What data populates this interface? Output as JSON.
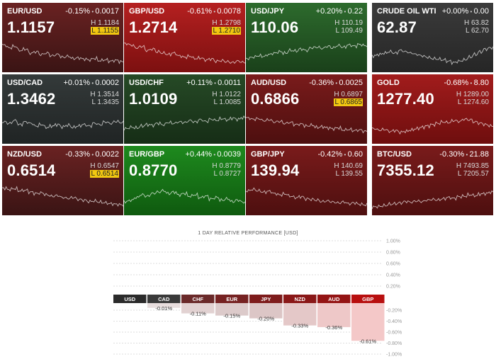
{
  "tiles": [
    {
      "symbol": "EUR/USD",
      "change": "-0.15%",
      "change_abs": "0.0017",
      "price": "1.1157",
      "high": "H 1.1184",
      "low": "L 1.1155",
      "low_hit": true,
      "high_hit": false,
      "theme": "dark-red",
      "trend": [
        0.8,
        0.7,
        0.75,
        0.6,
        0.65,
        0.5,
        0.55,
        0.45,
        0.5,
        0.4,
        0.45,
        0.35,
        0.38,
        0.3,
        0.32,
        0.28,
        0.25,
        0.3,
        0.22,
        0.25,
        0.2,
        0.23,
        0.18
      ]
    },
    {
      "symbol": "GBP/USD",
      "change": "-0.61%",
      "change_abs": "0.0078",
      "price": "1.2714",
      "high": "H 1.2798",
      "low": "L 1.2710",
      "low_hit": true,
      "high_hit": false,
      "theme": "red",
      "trend": [
        0.85,
        0.8,
        0.7,
        0.75,
        0.6,
        0.65,
        0.55,
        0.5,
        0.45,
        0.5,
        0.4,
        0.35,
        0.38,
        0.3,
        0.32,
        0.25,
        0.28,
        0.2,
        0.22,
        0.18,
        0.15,
        0.2,
        0.16
      ]
    },
    {
      "symbol": "USD/JPY",
      "change": "+0.20%",
      "change_abs": "0.22",
      "price": "110.06",
      "high": "H 110.19",
      "low": "L 109.49",
      "low_hit": false,
      "high_hit": false,
      "theme": "green",
      "trend": [
        0.3,
        0.35,
        0.4,
        0.38,
        0.45,
        0.5,
        0.55,
        0.5,
        0.6,
        0.58,
        0.65,
        0.6,
        0.7,
        0.72,
        0.68,
        0.75,
        0.7,
        0.78,
        0.72,
        0.8,
        0.76,
        0.82,
        0.78
      ]
    },
    {
      "symbol": "CRUDE OIL WTI",
      "change": "+0.00%",
      "change_abs": "0.00",
      "price": "62.87",
      "high": "H 63.82",
      "low": "L 62.70",
      "low_hit": false,
      "high_hit": false,
      "theme": "dark",
      "trend": [
        0.4,
        0.45,
        0.5,
        0.55,
        0.5,
        0.6,
        0.55,
        0.5,
        0.45,
        0.4,
        0.35,
        0.3,
        0.28,
        0.25,
        0.2,
        0.15,
        0.2,
        0.25,
        0.35,
        0.45,
        0.55,
        0.65,
        0.7
      ]
    },
    {
      "symbol": "USD/CAD",
      "change": "+0.01%",
      "change_abs": "0.0002",
      "price": "1.3462",
      "high": "H 1.3514",
      "low": "L 1.3435",
      "low_hit": false,
      "high_hit": false,
      "theme": "slate",
      "trend": [
        0.6,
        0.55,
        0.65,
        0.5,
        0.6,
        0.55,
        0.45,
        0.5,
        0.4,
        0.45,
        0.5,
        0.42,
        0.48,
        0.4,
        0.45,
        0.5,
        0.45,
        0.55,
        0.5,
        0.6,
        0.55,
        0.62,
        0.58
      ]
    },
    {
      "symbol": "USD/CHF",
      "change": "+0.11%",
      "change_abs": "0.0011",
      "price": "1.0109",
      "high": "H 1.0122",
      "low": "L 1.0085",
      "low_hit": false,
      "high_hit": false,
      "theme": "dark-green",
      "trend": [
        0.35,
        0.4,
        0.38,
        0.45,
        0.5,
        0.48,
        0.55,
        0.5,
        0.58,
        0.55,
        0.6,
        0.58,
        0.65,
        0.6,
        0.68,
        0.62,
        0.7,
        0.66,
        0.72,
        0.68,
        0.74,
        0.7,
        0.76
      ]
    },
    {
      "symbol": "AUD/USD",
      "change": "-0.36%",
      "change_abs": "0.0025",
      "price": "0.6866",
      "high": "H 0.6897",
      "low": "L 0.6865",
      "low_hit": true,
      "high_hit": false,
      "theme": "maroon",
      "trend": [
        0.75,
        0.7,
        0.72,
        0.65,
        0.68,
        0.6,
        0.62,
        0.55,
        0.58,
        0.5,
        0.52,
        0.45,
        0.48,
        0.4,
        0.42,
        0.38,
        0.35,
        0.38,
        0.3,
        0.32,
        0.28,
        0.3,
        0.25
      ]
    },
    {
      "symbol": "GOLD",
      "change": "-0.68%",
      "change_abs": "8.80",
      "price": "1277.40",
      "high": "H 1289.00",
      "low": "L 1274.60",
      "low_hit": false,
      "high_hit": false,
      "theme": "crimson",
      "trend": [
        0.35,
        0.3,
        0.32,
        0.25,
        0.28,
        0.22,
        0.25,
        0.3,
        0.35,
        0.4,
        0.45,
        0.5,
        0.55,
        0.6,
        0.58,
        0.65,
        0.62,
        0.7,
        0.68,
        0.6,
        0.55,
        0.5,
        0.45
      ]
    },
    {
      "symbol": "NZD/USD",
      "change": "-0.33%",
      "change_abs": "0.0022",
      "price": "0.6514",
      "high": "H 0.6547",
      "low": "L 0.6514",
      "low_hit": true,
      "high_hit": false,
      "theme": "dark-red",
      "trend": [
        0.8,
        0.75,
        0.78,
        0.7,
        0.72,
        0.65,
        0.6,
        0.62,
        0.55,
        0.5,
        0.52,
        0.45,
        0.42,
        0.45,
        0.38,
        0.35,
        0.3,
        0.32,
        0.28,
        0.25,
        0.22,
        0.2,
        0.18
      ]
    },
    {
      "symbol": "EUR/GBP",
      "change": "+0.44%",
      "change_abs": "0.0039",
      "price": "0.8770",
      "high": "H 0.8779",
      "low": "L 0.8727",
      "low_hit": false,
      "high_hit": false,
      "theme": "bright-green",
      "trend": [
        0.3,
        0.35,
        0.45,
        0.55,
        0.5,
        0.6,
        0.65,
        0.7,
        0.6,
        0.65,
        0.55,
        0.6,
        0.5,
        0.55,
        0.45,
        0.5,
        0.4,
        0.45,
        0.35,
        0.4,
        0.3,
        0.35,
        0.28
      ]
    },
    {
      "symbol": "GBP/JPY",
      "change": "-0.42%",
      "change_abs": "0.60",
      "price": "139.94",
      "high": "H 140.69",
      "low": "L 139.55",
      "low_hit": false,
      "high_hit": false,
      "theme": "maroon",
      "trend": [
        0.7,
        0.75,
        0.7,
        0.65,
        0.68,
        0.6,
        0.55,
        0.58,
        0.5,
        0.45,
        0.48,
        0.4,
        0.38,
        0.35,
        0.3,
        0.32,
        0.28,
        0.25,
        0.28,
        0.22,
        0.25,
        0.2,
        0.18
      ]
    },
    {
      "symbol": "BTC/USD",
      "change": "-0.30%",
      "change_abs": "21.88",
      "price": "7355.12",
      "high": "H 7493.85",
      "low": "L 7205.57",
      "low_hit": false,
      "high_hit": false,
      "theme": "maroon",
      "trend": [
        0.1,
        0.12,
        0.15,
        0.2,
        0.22,
        0.25,
        0.3,
        0.28,
        0.32,
        0.3,
        0.35,
        0.38,
        0.36,
        0.4,
        0.45,
        0.42,
        0.48,
        0.5,
        0.55,
        0.52,
        0.58,
        0.6,
        0.65
      ]
    }
  ],
  "chart_data": {
    "type": "bar",
    "title": "1 DAY RELATIVE PERFORMANCE  [USD]",
    "categories": [
      "USD",
      "CAD",
      "CHF",
      "EUR",
      "JPY",
      "NZD",
      "AUD",
      "GBP"
    ],
    "values": [
      0,
      -0.01,
      -0.11,
      -0.15,
      -0.2,
      -0.33,
      -0.36,
      -0.61
    ],
    "value_labels": [
      "",
      "-0.01%",
      "-0.11%",
      "-0.15%",
      "-0.20%",
      "-0.33%",
      "-0.36%",
      "-0.61%"
    ],
    "ylim": [
      -1.0,
      1.0
    ],
    "ticks_pos": [
      "1.00%",
      "0.80%",
      "0.60%",
      "0.40%",
      "0.20%"
    ],
    "ticks_neg": [
      "-0.20%",
      "-0.40%",
      "-0.60%",
      "-0.80%",
      "-1.00%"
    ],
    "cat_colors": [
      "#2b2b2b",
      "#3a3a3a",
      "#6b2a2a",
      "#762222",
      "#7e1c1c",
      "#8a1818",
      "#941414",
      "#b80f0f"
    ],
    "bar_colors": [
      "#d8c4c4",
      "#e8dede",
      "#e2d2d2",
      "#dccaca",
      "#dcc6c6",
      "#e4c8c8",
      "#eec8c8",
      "#f4c8c8"
    ]
  }
}
